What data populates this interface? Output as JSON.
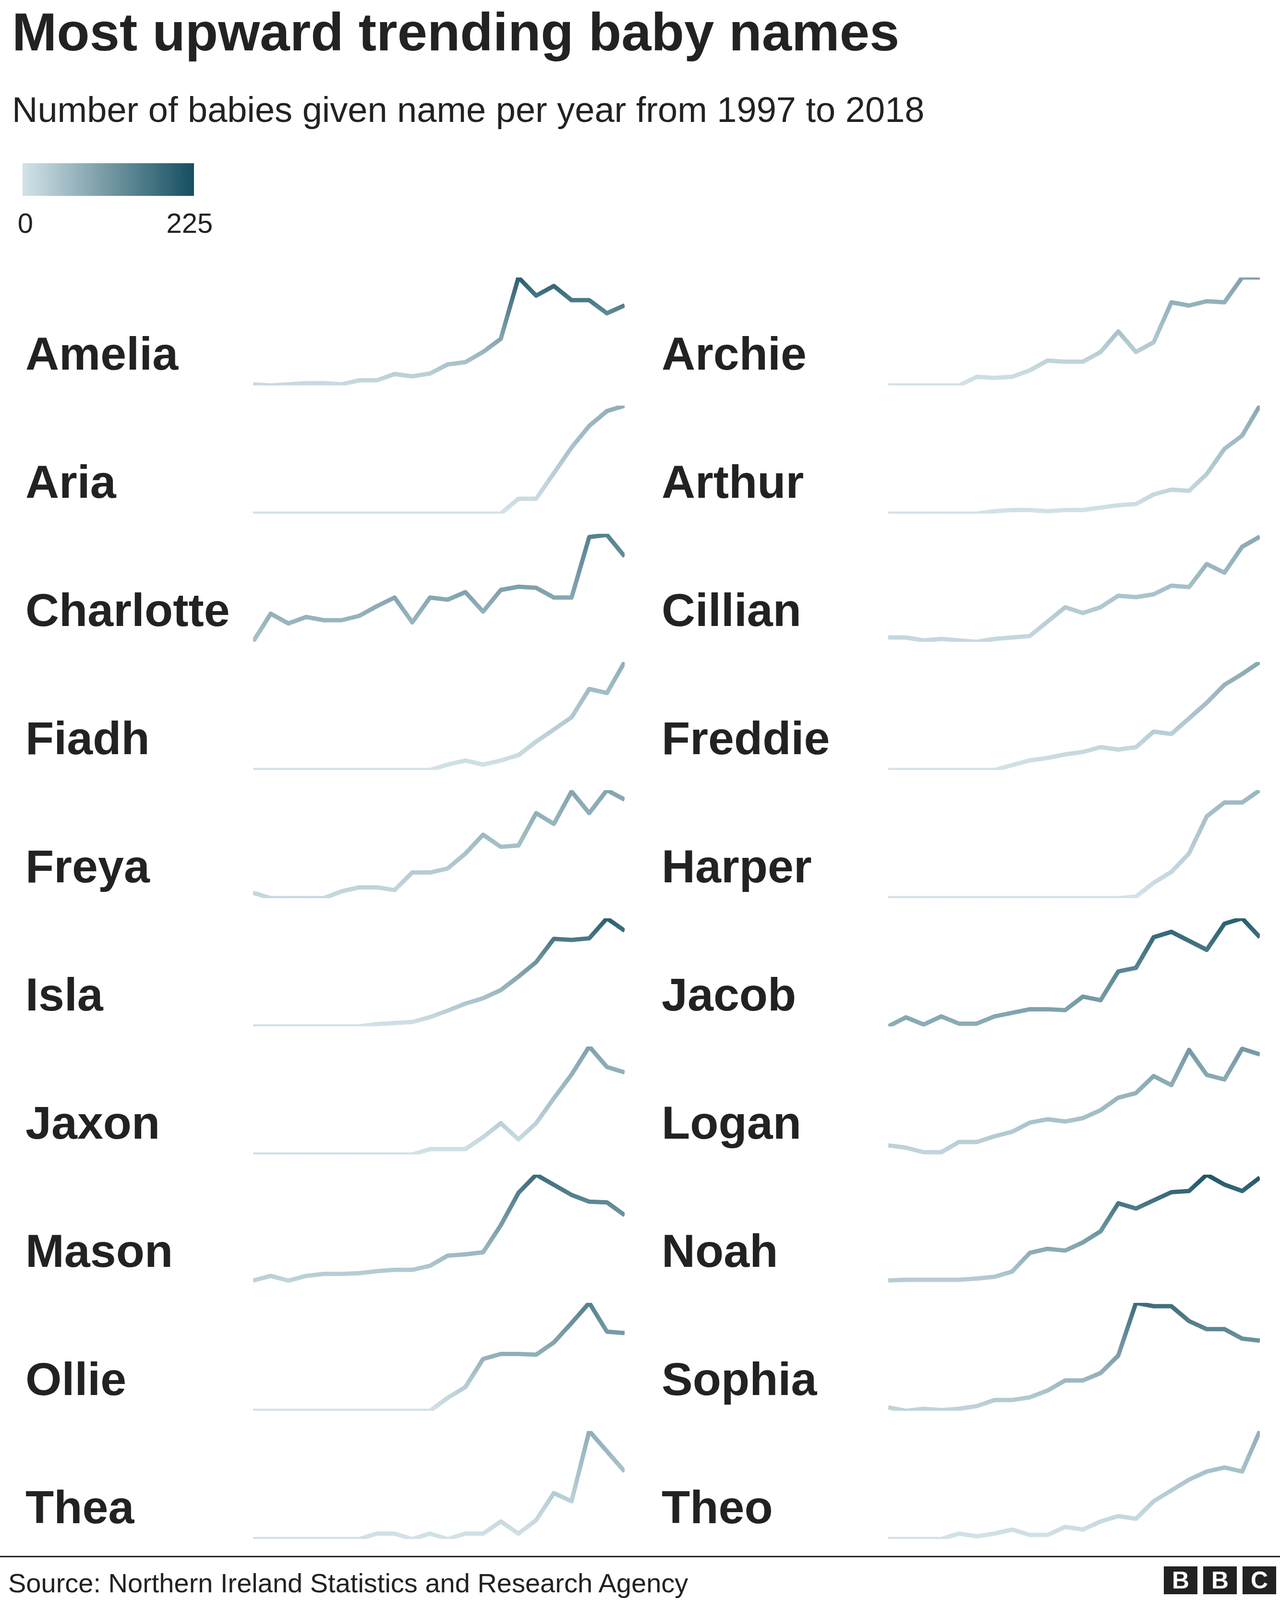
{
  "title": "Most upward trending baby names",
  "subtitle": "Number of babies given name per year from 1997 to 2018",
  "color_scale": {
    "range": [
      0,
      225
    ],
    "ticks": [
      0,
      225
    ],
    "colors": [
      "#d3e3e8",
      "#154e60"
    ]
  },
  "source": "Source: Northern Ireland Statistics and Research Agency",
  "logo": "BBC",
  "chart_data": [
    {
      "type": "line",
      "title": "Amelia",
      "x": [
        1997,
        1998,
        1999,
        2000,
        2001,
        2002,
        2003,
        2004,
        2005,
        2006,
        2007,
        2008,
        2009,
        2010,
        2011,
        2012,
        2013,
        2014,
        2015,
        2016,
        2017,
        2018
      ],
      "xlim": [
        1997,
        2018
      ],
      "ylim": [
        10,
        200
      ],
      "values": [
        12,
        10,
        12,
        14,
        14,
        12,
        19,
        19,
        30,
        26,
        31,
        47,
        51,
        69,
        92,
        200,
        168,
        185,
        160,
        160,
        137,
        151
      ],
      "tick_labels": false
    },
    {
      "type": "line",
      "title": "Archie",
      "x": [
        1997,
        1998,
        1999,
        2000,
        2001,
        2002,
        2003,
        2004,
        2005,
        2006,
        2007,
        2008,
        2009,
        2010,
        2011,
        2012,
        2013,
        2014,
        2015,
        2016,
        2017,
        2018
      ],
      "xlim": [
        1997,
        2018
      ],
      "ylim": [
        0,
        100
      ],
      "values": [
        0,
        0,
        0,
        0,
        0,
        8,
        7,
        8,
        14,
        23,
        22,
        22,
        31,
        50,
        31,
        40,
        77,
        74,
        78,
        77,
        100,
        100
      ],
      "tick_labels": false
    },
    {
      "type": "line",
      "title": "Aria",
      "x": [
        1997,
        1998,
        1999,
        2000,
        2001,
        2002,
        2003,
        2004,
        2005,
        2006,
        2007,
        2008,
        2009,
        2010,
        2011,
        2012,
        2013,
        2014,
        2015,
        2016,
        2017,
        2018
      ],
      "xlim": [
        1997,
        2018
      ],
      "ylim": [
        0,
        80
      ],
      "values": [
        0,
        0,
        0,
        0,
        0,
        0,
        0,
        0,
        0,
        0,
        0,
        0,
        0,
        0,
        0,
        11,
        11,
        30,
        49,
        65,
        76,
        80
      ],
      "tick_labels": false
    },
    {
      "type": "line",
      "title": "Arthur",
      "x": [
        1997,
        1998,
        1999,
        2000,
        2001,
        2002,
        2003,
        2004,
        2005,
        2006,
        2007,
        2008,
        2009,
        2010,
        2011,
        2012,
        2013,
        2014,
        2015,
        2016,
        2017,
        2018
      ],
      "xlim": [
        1997,
        2018
      ],
      "ylim": [
        0,
        90
      ],
      "values": [
        0,
        0,
        0,
        0,
        0,
        0,
        2,
        3,
        3,
        2,
        3,
        3,
        5,
        7,
        8,
        16,
        20,
        19,
        33,
        54,
        65,
        90
      ],
      "tick_labels": false
    },
    {
      "type": "line",
      "title": "Charlotte",
      "x": [
        1997,
        1998,
        1999,
        2000,
        2001,
        2002,
        2003,
        2004,
        2005,
        2006,
        2007,
        2008,
        2009,
        2010,
        2011,
        2012,
        2013,
        2014,
        2015,
        2016,
        2017,
        2018
      ],
      "xlim": [
        1997,
        2018
      ],
      "ylim": [
        50,
        150
      ],
      "values": [
        50,
        76,
        67,
        73,
        70,
        70,
        74,
        83,
        91,
        68,
        91,
        89,
        96,
        78,
        98,
        101,
        100,
        91,
        91,
        147,
        149,
        129
      ],
      "tick_labels": false
    },
    {
      "type": "line",
      "title": "Cillian",
      "x": [
        1997,
        1998,
        1999,
        2000,
        2001,
        2002,
        2003,
        2004,
        2005,
        2006,
        2007,
        2008,
        2009,
        2010,
        2011,
        2012,
        2013,
        2014,
        2015,
        2016,
        2017,
        2018
      ],
      "xlim": [
        1997,
        2018
      ],
      "ylim": [
        15,
        90
      ],
      "values": [
        18,
        18,
        16,
        17,
        16,
        15,
        17,
        18,
        19,
        29,
        39,
        35,
        39,
        47,
        46,
        48,
        54,
        53,
        69,
        63,
        81,
        88
      ],
      "tick_labels": false
    },
    {
      "type": "line",
      "title": "Fiadh",
      "x": [
        1997,
        1998,
        1999,
        2000,
        2001,
        2002,
        2003,
        2004,
        2005,
        2006,
        2007,
        2008,
        2009,
        2010,
        2011,
        2012,
        2013,
        2014,
        2015,
        2016,
        2017,
        2018
      ],
      "xlim": [
        1997,
        2018
      ],
      "ylim": [
        0,
        80
      ],
      "values": [
        0,
        0,
        0,
        0,
        0,
        0,
        0,
        0,
        0,
        0,
        0,
        4,
        7,
        4,
        7,
        11,
        21,
        30,
        39,
        60,
        57,
        80
      ],
      "tick_labels": false
    },
    {
      "type": "line",
      "title": "Freddie",
      "x": [
        1997,
        1998,
        1999,
        2000,
        2001,
        2002,
        2003,
        2004,
        2005,
        2006,
        2007,
        2008,
        2009,
        2010,
        2011,
        2012,
        2013,
        2014,
        2015,
        2016,
        2017,
        2018
      ],
      "xlim": [
        1997,
        2018
      ],
      "ylim": [
        0,
        90
      ],
      "values": [
        0,
        0,
        0,
        0,
        0,
        0,
        0,
        4,
        8,
        10,
        13,
        15,
        19,
        17,
        19,
        32,
        30,
        43,
        56,
        71,
        80,
        90
      ],
      "tick_labels": false
    },
    {
      "type": "line",
      "title": "Freya",
      "x": [
        1997,
        1998,
        1999,
        2000,
        2001,
        2002,
        2003,
        2004,
        2005,
        2006,
        2007,
        2008,
        2009,
        2010,
        2011,
        2012,
        2013,
        2014,
        2015,
        2016,
        2017,
        2018
      ],
      "xlim": [
        1997,
        2018
      ],
      "ylim": [
        15,
        95
      ],
      "values": [
        19,
        15,
        15,
        15,
        15,
        20,
        23,
        23,
        21,
        34,
        34,
        37,
        48,
        62,
        53,
        54,
        78,
        70,
        94,
        78,
        95,
        88
      ],
      "tick_labels": false
    },
    {
      "type": "line",
      "title": "Harper",
      "x": [
        1997,
        1998,
        1999,
        2000,
        2001,
        2002,
        2003,
        2004,
        2005,
        2006,
        2007,
        2008,
        2009,
        2010,
        2011,
        2012,
        2013,
        2014,
        2015,
        2016,
        2017,
        2018
      ],
      "xlim": [
        1997,
        2018
      ],
      "ylim": [
        0,
        70
      ],
      "values": [
        0,
        0,
        0,
        0,
        0,
        0,
        0,
        0,
        0,
        0,
        0,
        0,
        0,
        0,
        1,
        10,
        17,
        29,
        53,
        62,
        62,
        70
      ],
      "tick_labels": false
    },
    {
      "type": "line",
      "title": "Isla",
      "x": [
        1997,
        1998,
        1999,
        2000,
        2001,
        2002,
        2003,
        2004,
        2005,
        2006,
        2007,
        2008,
        2009,
        2010,
        2011,
        2012,
        2013,
        2014,
        2015,
        2016,
        2017,
        2018
      ],
      "xlim": [
        1997,
        2018
      ],
      "ylim": [
        0,
        200
      ],
      "values": [
        0,
        0,
        0,
        0,
        0,
        0,
        0,
        4,
        6,
        8,
        17,
        29,
        42,
        52,
        67,
        92,
        119,
        162,
        160,
        163,
        200,
        177
      ],
      "tick_labels": false
    },
    {
      "type": "line",
      "title": "Jacob",
      "x": [
        1997,
        1998,
        1999,
        2000,
        2001,
        2002,
        2003,
        2004,
        2005,
        2006,
        2007,
        2008,
        2009,
        2010,
        2011,
        2012,
        2013,
        2014,
        2015,
        2016,
        2017,
        2018
      ],
      "xlim": [
        1997,
        2018
      ],
      "ylim": [
        80,
        200
      ],
      "values": [
        80,
        90,
        82,
        91,
        83,
        83,
        91,
        95,
        99,
        99,
        98,
        113,
        109,
        141,
        145,
        179,
        185,
        175,
        165,
        194,
        200,
        179
      ],
      "tick_labels": false
    },
    {
      "type": "line",
      "title": "Jaxon",
      "x": [
        1997,
        1998,
        1999,
        2000,
        2001,
        2002,
        2003,
        2004,
        2005,
        2006,
        2007,
        2008,
        2009,
        2010,
        2011,
        2012,
        2013,
        2014,
        2015,
        2016,
        2017,
        2018
      ],
      "xlim": [
        1997,
        2018
      ],
      "ylim": [
        0,
        100
      ],
      "values": [
        0,
        0,
        0,
        0,
        0,
        0,
        0,
        0,
        0,
        0,
        5,
        5,
        5,
        16,
        29,
        14,
        29,
        52,
        74,
        100,
        81,
        76
      ],
      "tick_labels": false
    },
    {
      "type": "line",
      "title": "Logan",
      "x": [
        1997,
        1998,
        1999,
        2000,
        2001,
        2002,
        2003,
        2004,
        2005,
        2006,
        2007,
        2008,
        2009,
        2010,
        2011,
        2012,
        2013,
        2014,
        2015,
        2016,
        2017,
        2018
      ],
      "xlim": [
        1997,
        2018
      ],
      "ylim": [
        20,
        115
      ],
      "values": [
        28,
        26,
        22,
        22,
        31,
        31,
        36,
        40,
        48,
        51,
        49,
        52,
        59,
        70,
        74,
        89,
        81,
        112,
        90,
        86,
        113,
        108
      ],
      "tick_labels": false
    },
    {
      "type": "line",
      "title": "Mason",
      "x": [
        1997,
        1998,
        1999,
        2000,
        2001,
        2002,
        2003,
        2004,
        2005,
        2006,
        2007,
        2008,
        2009,
        2010,
        2011,
        2012,
        2013,
        2014,
        2015,
        2016,
        2017,
        2018
      ],
      "xlim": [
        1997,
        2018
      ],
      "ylim": [
        20,
        180
      ],
      "values": [
        23,
        30,
        23,
        30,
        33,
        33,
        34,
        37,
        39,
        39,
        45,
        60,
        62,
        65,
        105,
        153,
        180,
        165,
        150,
        140,
        139,
        120
      ],
      "tick_labels": false
    },
    {
      "type": "line",
      "title": "Noah",
      "x": [
        1997,
        1998,
        1999,
        2000,
        2001,
        2002,
        2003,
        2004,
        2005,
        2006,
        2007,
        2008,
        2009,
        2010,
        2011,
        2012,
        2013,
        2014,
        2015,
        2016,
        2017,
        2018
      ],
      "xlim": [
        1997,
        2018
      ],
      "ylim": [
        30,
        215
      ],
      "values": [
        34,
        35,
        35,
        35,
        35,
        37,
        40,
        49,
        81,
        88,
        85,
        99,
        118,
        166,
        157,
        171,
        185,
        187,
        215,
        198,
        187,
        210
      ],
      "tick_labels": false
    },
    {
      "type": "line",
      "title": "Ollie",
      "x": [
        1997,
        1998,
        1999,
        2000,
        2001,
        2002,
        2003,
        2004,
        2005,
        2006,
        2007,
        2008,
        2009,
        2010,
        2011,
        2012,
        2013,
        2014,
        2015,
        2016,
        2017,
        2018
      ],
      "xlim": [
        1997,
        2018
      ],
      "ylim": [
        0,
        150
      ],
      "values": [
        0,
        0,
        0,
        0,
        0,
        0,
        0,
        0,
        0,
        0,
        0,
        18,
        33,
        72,
        79,
        79,
        78,
        95,
        122,
        150,
        110,
        108
      ],
      "tick_labels": false
    },
    {
      "type": "line",
      "title": "Sophia",
      "x": [
        1997,
        1998,
        1999,
        2000,
        2001,
        2002,
        2003,
        2004,
        2005,
        2006,
        2007,
        2008,
        2009,
        2010,
        2011,
        2012,
        2013,
        2014,
        2015,
        2016,
        2017,
        2018
      ],
      "xlim": [
        1997,
        2018
      ],
      "ylim": [
        20,
        180
      ],
      "values": [
        25,
        20,
        23,
        21,
        23,
        27,
        36,
        36,
        40,
        50,
        65,
        65,
        76,
        102,
        180,
        175,
        175,
        153,
        141,
        141,
        127,
        124
      ],
      "tick_labels": false
    },
    {
      "type": "line",
      "title": "Thea",
      "x": [
        1997,
        1998,
        1999,
        2000,
        2001,
        2002,
        2003,
        2004,
        2005,
        2006,
        2007,
        2008,
        2009,
        2010,
        2011,
        2012,
        2013,
        2014,
        2015,
        2016,
        2017,
        2018
      ],
      "xlim": [
        1997,
        2018
      ],
      "ylim": [
        0,
        80
      ],
      "values": [
        0,
        0,
        0,
        0,
        0,
        0,
        0,
        4,
        4,
        0,
        4,
        0,
        4,
        4,
        13,
        4,
        14,
        34,
        28,
        80,
        65,
        50
      ],
      "tick_labels": false
    },
    {
      "type": "line",
      "title": "Theo",
      "x": [
        1997,
        1998,
        1999,
        2000,
        2001,
        2002,
        2003,
        2004,
        2005,
        2006,
        2007,
        2008,
        2009,
        2010,
        2011,
        2012,
        2013,
        2014,
        2015,
        2016,
        2017,
        2018
      ],
      "xlim": [
        1997,
        2018
      ],
      "ylim": [
        0,
        80
      ],
      "values": [
        0,
        0,
        0,
        0,
        4,
        2,
        4,
        7,
        3,
        3,
        9,
        7,
        13,
        17,
        15,
        28,
        36,
        44,
        50,
        53,
        50,
        80
      ],
      "tick_labels": false
    }
  ]
}
